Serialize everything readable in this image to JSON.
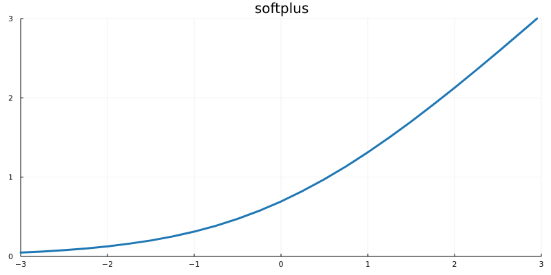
{
  "chart_data": {
    "type": "line",
    "title": "softplus",
    "xlabel": "",
    "ylabel": "",
    "xlim": [
      -3,
      3
    ],
    "ylim": [
      0,
      3
    ],
    "x_ticks": [
      -3,
      -2,
      -1,
      0,
      1,
      2,
      3
    ],
    "x_tick_labels": [
      "−3",
      "−2",
      "−1",
      "0",
      "1",
      "2",
      "3"
    ],
    "y_ticks": [
      0,
      1,
      2,
      3
    ],
    "y_tick_labels": [
      "0",
      "1",
      "2",
      "3"
    ],
    "grid": true,
    "legend": "none",
    "series": [
      {
        "color": "#1f77b4",
        "x": [
          -3.0,
          -2.75,
          -2.5,
          -2.25,
          -2.0,
          -1.75,
          -1.5,
          -1.25,
          -1.0,
          -0.75,
          -0.5,
          -0.25,
          0.0,
          0.25,
          0.5,
          0.75,
          1.0,
          1.25,
          1.5,
          1.75,
          2.0,
          2.25,
          2.5,
          2.75,
          2.95
        ],
        "y": [
          0.049,
          0.062,
          0.079,
          0.1,
          0.127,
          0.161,
          0.201,
          0.252,
          0.313,
          0.386,
          0.474,
          0.576,
          0.693,
          0.826,
          0.974,
          1.136,
          1.313,
          1.502,
          1.701,
          1.911,
          2.127,
          2.351,
          2.579,
          2.812,
          3.0
        ]
      }
    ]
  }
}
